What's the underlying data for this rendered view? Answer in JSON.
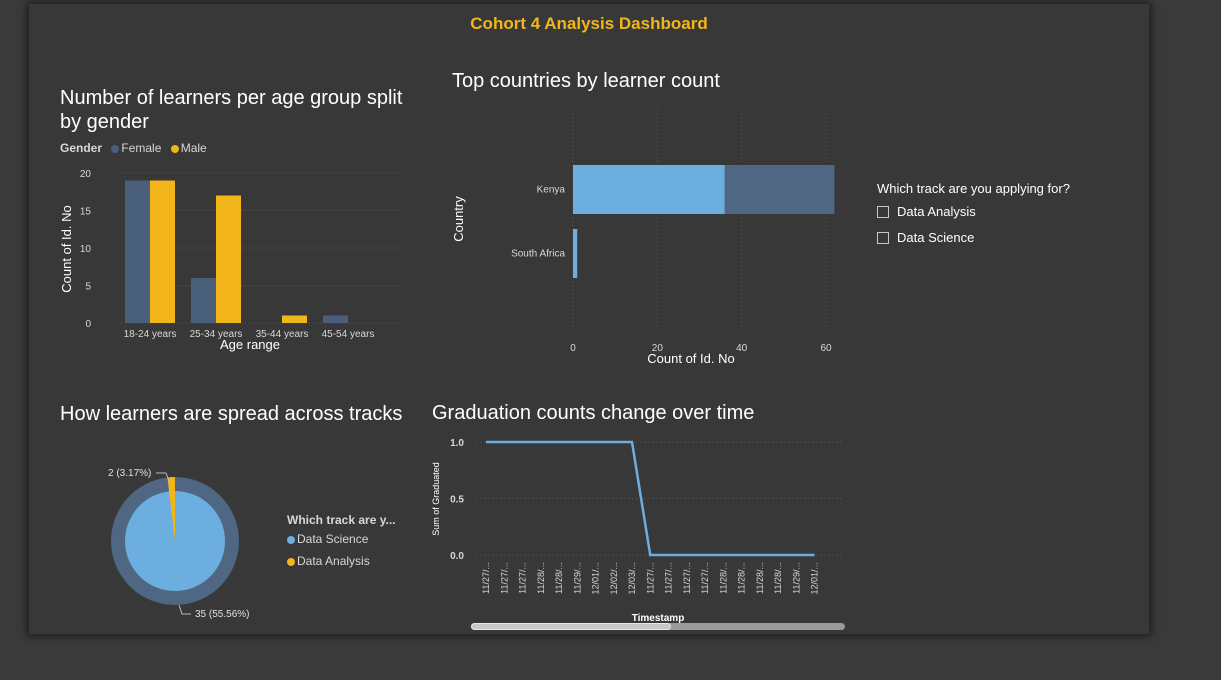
{
  "dashboard": {
    "title": "Cohort  4 Analysis  Dashboard"
  },
  "colors": {
    "female": "#4a5f79",
    "male": "#f2b51a",
    "kenya_light": "#6caee0",
    "kenya_dark": "#4f6783",
    "data_science": "#6caee0",
    "data_analysis": "#f2b51a",
    "line": "#6caee0"
  },
  "age_chart": {
    "title": "Number of learners per age group split by gender",
    "legend_title": "Gender",
    "legend": [
      "Female",
      "Male"
    ],
    "ylabel": "Count of Id. No",
    "xlabel": "Age range",
    "yticks": [
      "20",
      "15",
      "10",
      "5",
      "0"
    ]
  },
  "country_chart": {
    "title": "Top countries by learner count",
    "ylabel": "Country",
    "xlabel": "Count of Id. No",
    "xticks": [
      "0",
      "20",
      "40",
      "60"
    ]
  },
  "track_slicer": {
    "title": "Which track are you applying for?",
    "options": [
      "Data Analysis",
      "Data Science"
    ]
  },
  "pie_chart": {
    "title": "How learners are spread across tracks",
    "legend_title": "Which track are y...",
    "legend": [
      "Data Science",
      "Data Analysis"
    ],
    "label_small": "2 (3.17%)",
    "label_large": "35 (55.56%)"
  },
  "line_chart": {
    "title": "Graduation counts change over time",
    "ylabel": "Sum of Graduated",
    "xlabel": "Timestamp",
    "yticks": [
      "1.0",
      "0.5",
      "0.0"
    ]
  },
  "chart_data": [
    {
      "type": "bar",
      "title": "Number of learners per age group split by gender",
      "xlabel": "Age range",
      "ylabel": "Count of Id. No",
      "categories": [
        "18-24 years",
        "25-34 years",
        "35-44 years",
        "45-54 years"
      ],
      "series": [
        {
          "name": "Female",
          "values": [
            19,
            6,
            0,
            1
          ]
        },
        {
          "name": "Male",
          "values": [
            19,
            17,
            1,
            0
          ]
        }
      ],
      "ylim": [
        0,
        20
      ],
      "legend": "top-left",
      "grid": true
    },
    {
      "type": "bar",
      "orientation": "horizontal",
      "title": "Top countries by learner count",
      "xlabel": "Count of Id. No",
      "ylabel": "Country",
      "categories": [
        "Kenya",
        "South Africa"
      ],
      "stacked_segments": [
        {
          "values": [
            36,
            1
          ]
        },
        {
          "values": [
            26,
            0
          ]
        }
      ],
      "xlim": [
        0,
        62
      ],
      "grid": true
    },
    {
      "type": "pie",
      "title": "How learners are spread across tracks",
      "slices": [
        {
          "name": "Data Science",
          "value": 35,
          "label": "35 (55.56%)"
        },
        {
          "name": "Data Analysis",
          "value": 2,
          "label": "2 (3.17%)"
        }
      ],
      "legend": "right"
    },
    {
      "type": "line",
      "title": "Graduation counts change over time",
      "xlabel": "Timestamp",
      "ylabel": "Sum of Graduated",
      "x": [
        "11/27/2...",
        "11/27/2...",
        "11/27/2...",
        "11/28/2...",
        "11/28/2...",
        "11/29/2...",
        "12/01/2...",
        "12/02/2...",
        "12/03/2...",
        "11/27/2...",
        "11/27/2...",
        "11/27/2...",
        "11/27/2...",
        "11/28/2...",
        "11/28/2...",
        "11/28/2...",
        "11/28/2...",
        "11/29/2...",
        "12/01/2..."
      ],
      "tick_text": [
        "11/27/...",
        "11/27/...",
        "11/27/...",
        "11/28/...",
        "11/28/...",
        "11/29/...",
        "12/01/...",
        "12/02/...",
        "12/03/...",
        "11/27/...",
        "11/27/...",
        "11/27/...",
        "11/27/...",
        "11/28/...",
        "11/28/...",
        "11/28/...",
        "11/28/...",
        "11/29/...",
        "12/01/..."
      ],
      "y": [
        1,
        1,
        1,
        1,
        1,
        1,
        1,
        1,
        1,
        0,
        0,
        0,
        0,
        0,
        0,
        0,
        0,
        0,
        0
      ],
      "ylim": [
        0,
        1
      ],
      "grid": true
    }
  ]
}
